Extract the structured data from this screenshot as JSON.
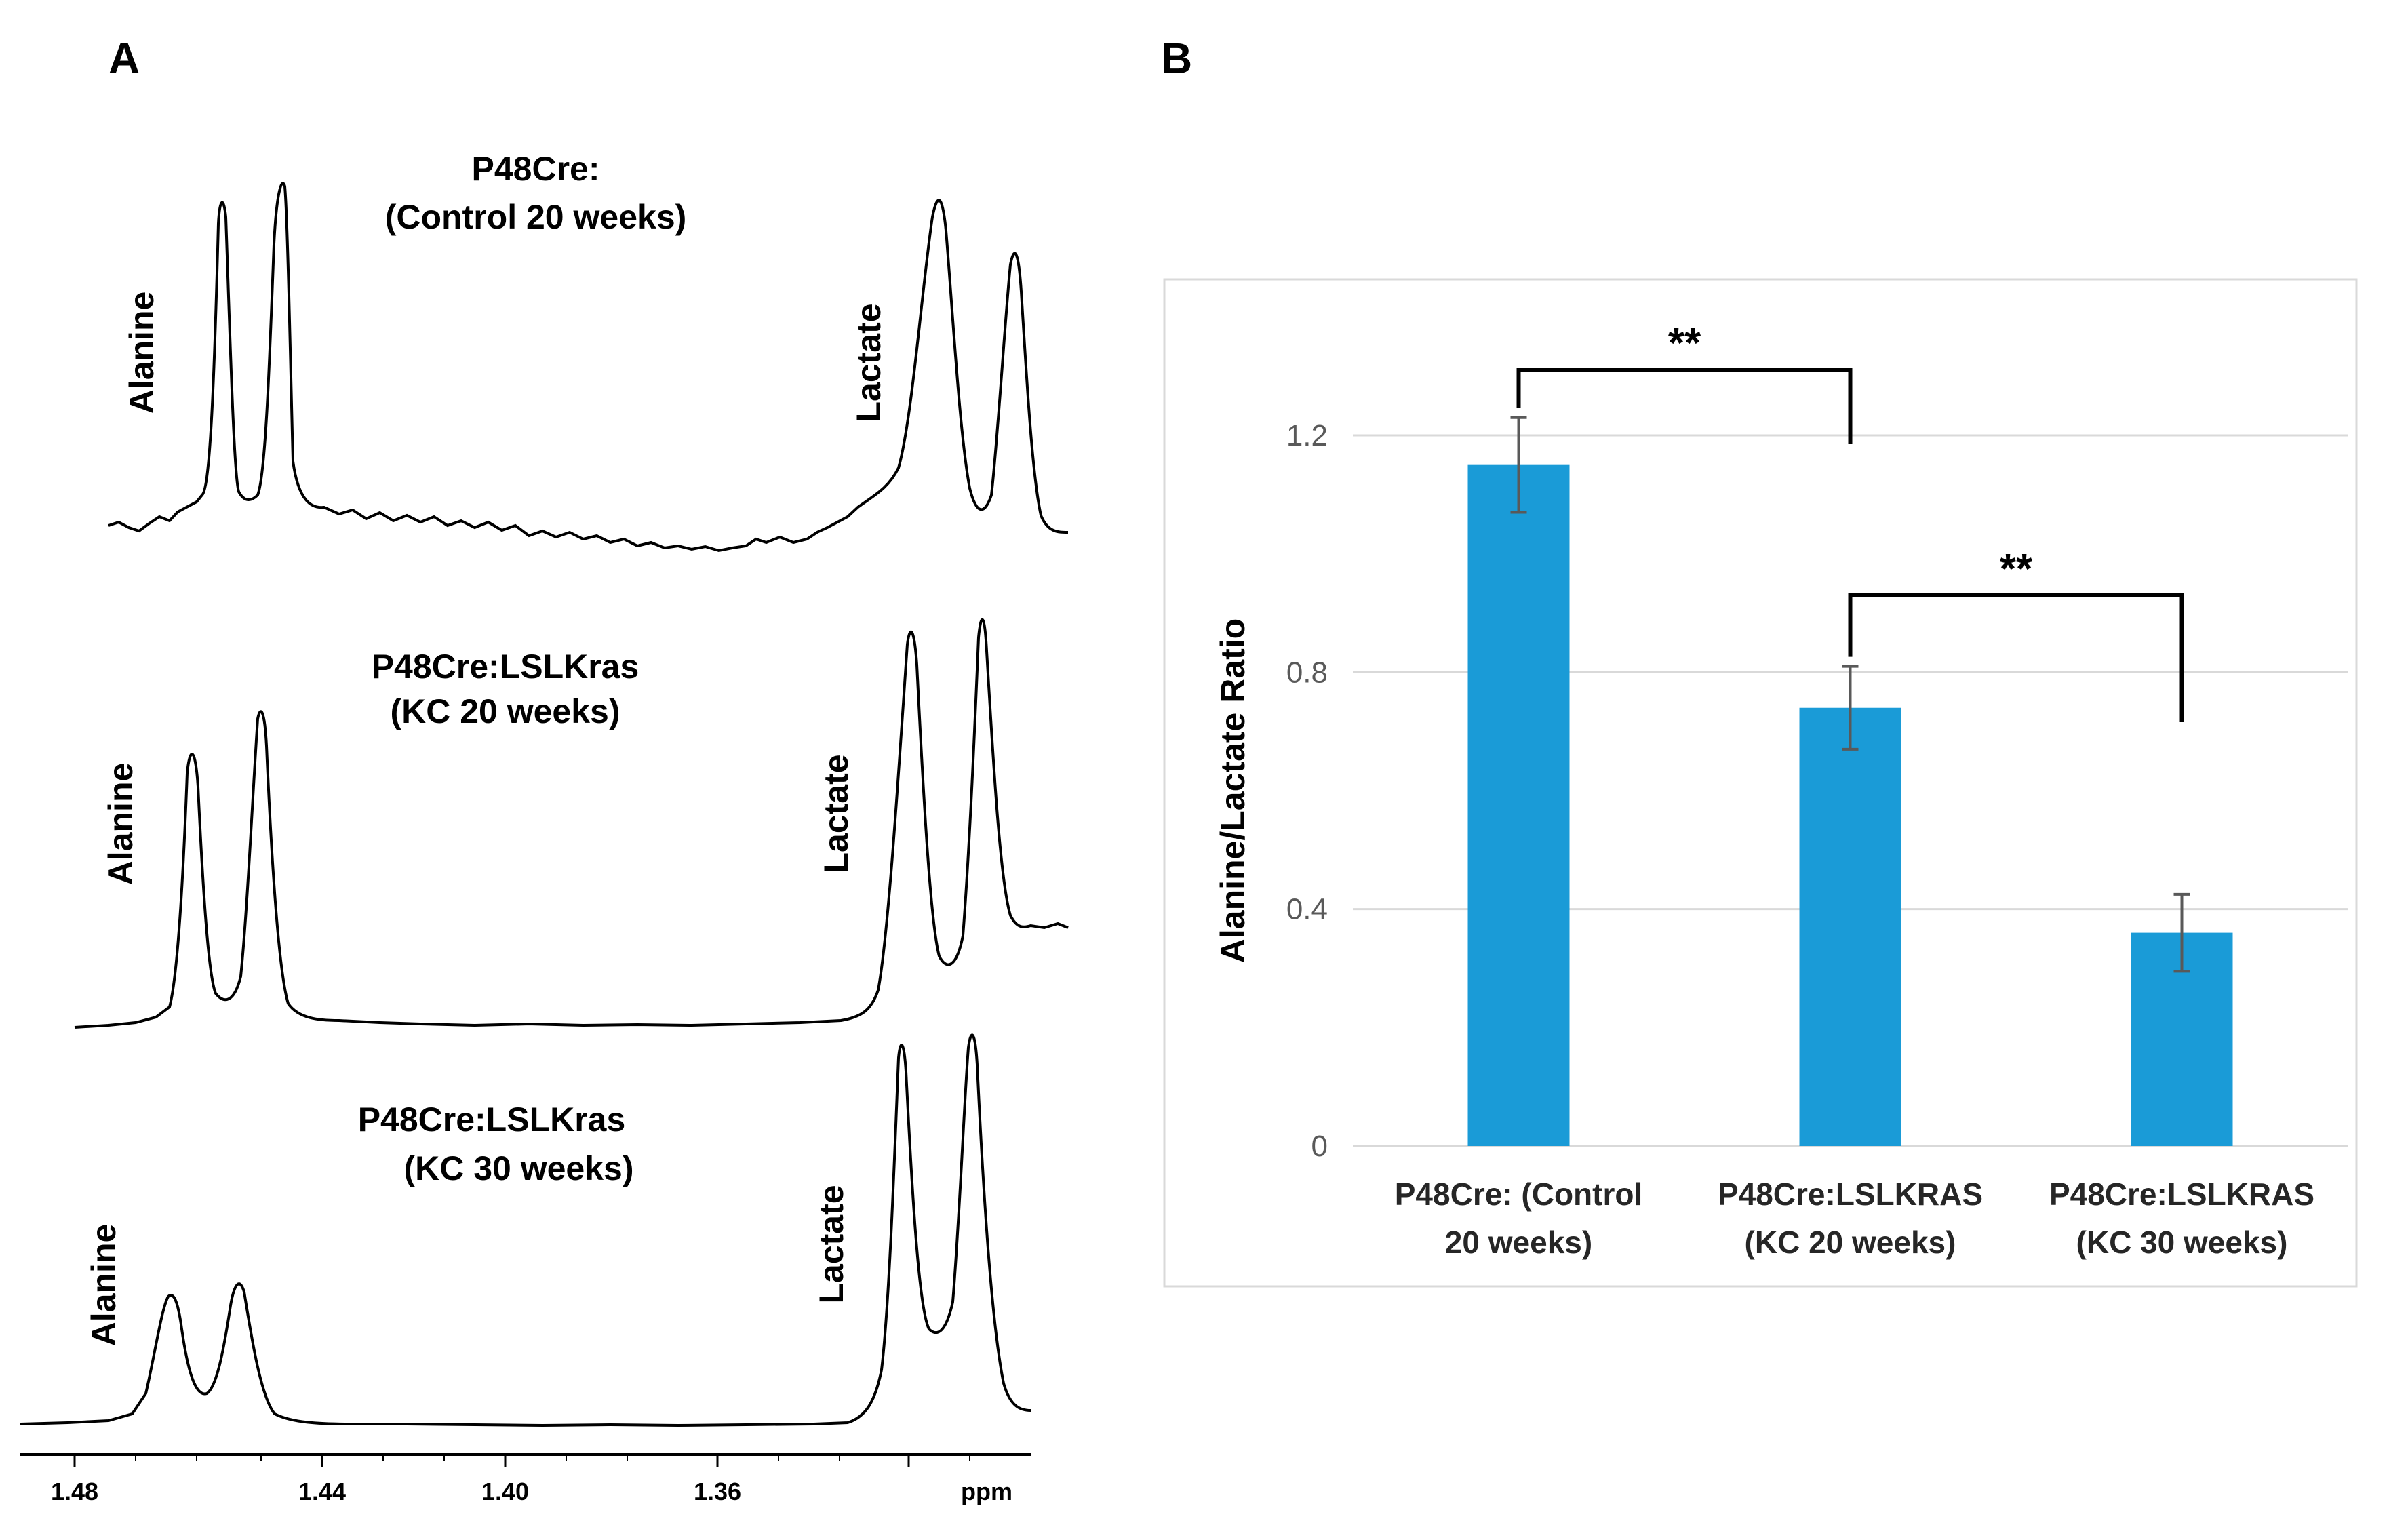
{
  "panel_a": {
    "letter": "A",
    "spectra": [
      {
        "title_line1": "P48Cre:",
        "title_line2": "(Control 20 weeks)",
        "left_peak_label": "Alanine",
        "right_peak_label": "Lactate"
      },
      {
        "title_line1": "P48Cre:LSLKras",
        "title_line2": "(KC 20 weeks)",
        "left_peak_label": "Alanine",
        "right_peak_label": "Lactate"
      },
      {
        "title_line1": "P48Cre:LSLKras",
        "title_line2": "(KC 30 weeks)",
        "left_peak_label": "Alanine",
        "right_peak_label": "Lactate"
      }
    ],
    "axis": {
      "ticks": [
        "1.48",
        "1.44",
        "1.40",
        "1.36"
      ],
      "unit": "ppm"
    }
  },
  "panel_b": {
    "letter": "B",
    "significance": [
      "**",
      "**"
    ]
  },
  "chart_data": {
    "type": "bar",
    "title": "",
    "xlabel": "",
    "ylabel": "Alanine/Lactate Ratio",
    "ylim": [
      0,
      1.2
    ],
    "yticks": [
      0,
      0.4,
      0.8,
      1.2
    ],
    "ytick_labels": [
      "0",
      "0.4",
      "0.8",
      "1.2"
    ],
    "categories": [
      {
        "line1": "P48Cre: (Control",
        "line2": "20 weeks)"
      },
      {
        "line1": "P48Cre:LSLKRAS",
        "line2": "(KC 20 weeks)"
      },
      {
        "line1": "P48Cre:LSLKRAS",
        "line2": "(KC 30 weeks)"
      }
    ],
    "values": [
      1.15,
      0.74,
      0.36
    ],
    "errors": [
      0.08,
      0.07,
      0.065
    ],
    "bar_color": "#1a9bd7",
    "grid": true,
    "comparisons": [
      {
        "from": 0,
        "to": 1,
        "label": "**"
      },
      {
        "from": 1,
        "to": 2,
        "label": "**"
      }
    ]
  }
}
